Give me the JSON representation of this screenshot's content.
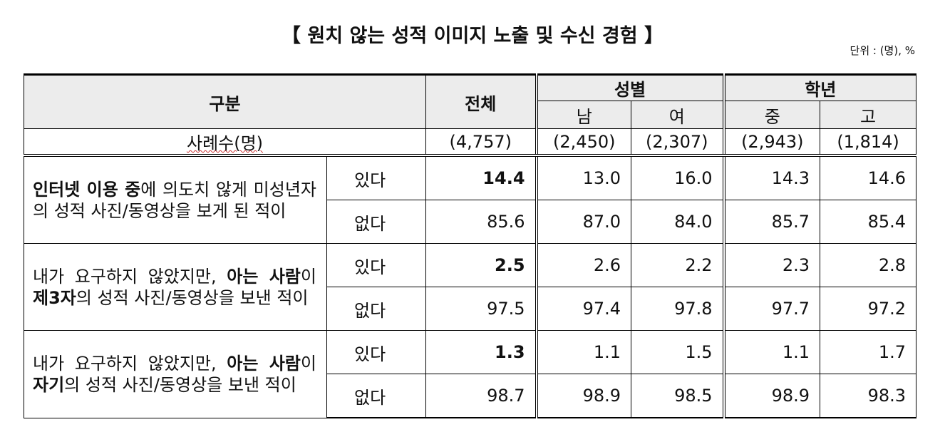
{
  "title": "【 원치 않는 성적 이미지 노출 및 수신 경험 】",
  "unit": "단위 : (명), %",
  "header": {
    "category": "구분",
    "total": "전체",
    "gender": "성별",
    "grade": "학년",
    "male": "남",
    "female": "여",
    "middle": "중",
    "high": "고"
  },
  "sample": {
    "label": "사례수(명)",
    "values": [
      "(4,757)",
      "(2,450)",
      "(2,307)",
      "(2,943)",
      "(1,814)"
    ]
  },
  "groups": [
    {
      "label": [
        {
          "text": "인터넷 이용 중",
          "bold": true
        },
        {
          "text": "에 의도치 않게 미성년자의 성적 사진/동영상을 보게 된 적이",
          "bold": false
        }
      ],
      "rows": [
        {
          "answer": "있다",
          "values": [
            "14.4",
            "13.0",
            "16.0",
            "14.3",
            "14.6"
          ]
        },
        {
          "answer": "없다",
          "values": [
            "85.6",
            "87.0",
            "84.0",
            "85.7",
            "85.4"
          ]
        }
      ]
    },
    {
      "label": [
        {
          "text": "내가 요구하지 않았지만, ",
          "bold": false
        },
        {
          "text": "아는 사람",
          "bold": true
        },
        {
          "text": "이 ",
          "bold": false
        },
        {
          "text": "제3자",
          "bold": true
        },
        {
          "text": "의 성적 사진/동영상을 보낸 적이",
          "bold": false
        }
      ],
      "rows": [
        {
          "answer": "있다",
          "values": [
            "2.5",
            "2.6",
            "2.2",
            "2.3",
            "2.8"
          ]
        },
        {
          "answer": "없다",
          "values": [
            "97.5",
            "97.4",
            "97.8",
            "97.7",
            "97.2"
          ]
        }
      ]
    },
    {
      "label": [
        {
          "text": "내가 요구하지 않았지만, ",
          "bold": false
        },
        {
          "text": "아는 사람",
          "bold": true
        },
        {
          "text": "이 ",
          "bold": false
        },
        {
          "text": "자기",
          "bold": true
        },
        {
          "text": "의 성적 사진/동영상을 보낸 적이",
          "bold": false
        }
      ],
      "rows": [
        {
          "answer": "있다",
          "values": [
            "1.3",
            "1.1",
            "1.5",
            "1.1",
            "1.7"
          ]
        },
        {
          "answer": "없다",
          "values": [
            "98.7",
            "98.9",
            "98.5",
            "98.9",
            "98.3"
          ]
        }
      ]
    }
  ]
}
